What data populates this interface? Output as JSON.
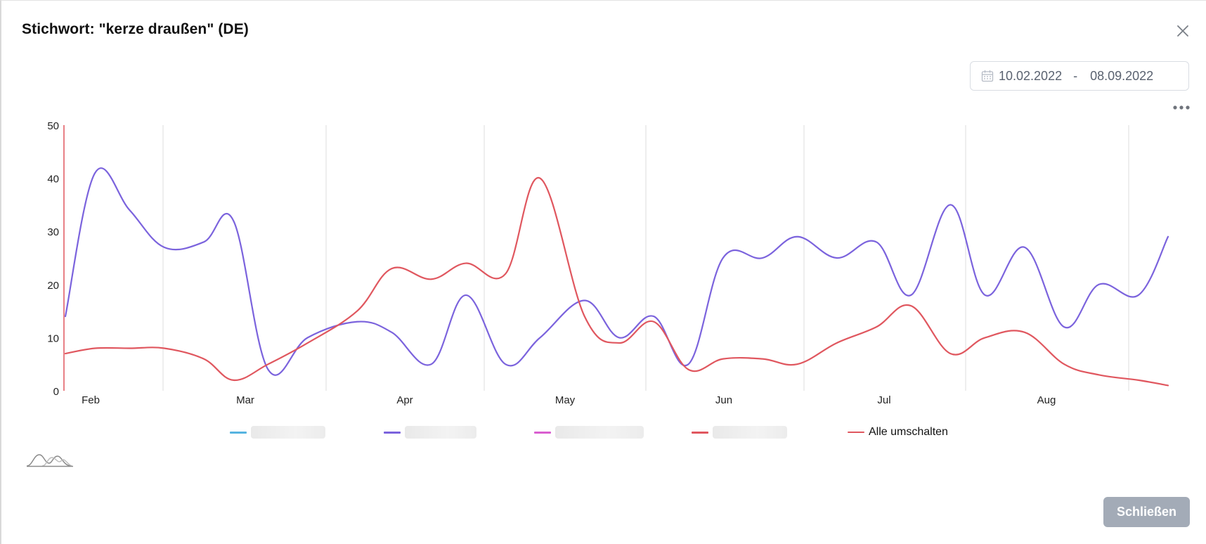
{
  "modal": {
    "title": "Stichwort: \"kerze draußen\" (DE)",
    "close_icon": "close-icon"
  },
  "date_range": {
    "icon": "calendar-icon",
    "start": "10.02.2022",
    "separator": "-",
    "end": "08.09.2022"
  },
  "menu": {
    "icon": "more-horizontal-icon"
  },
  "legend": {
    "items": [
      {
        "color": "#56b4e0",
        "label": ""
      },
      {
        "color": "#7b63dd",
        "label": ""
      },
      {
        "color": "#d95fd0",
        "label": ""
      },
      {
        "color": "#e0575f",
        "label": ""
      }
    ],
    "toggle_all": {
      "color": "#e0575f",
      "label": "Alle umschalten"
    }
  },
  "thumbnail_icon": "chart-thumbnail-icon",
  "footer": {
    "close_label": "Schließen"
  },
  "chart_data": {
    "type": "line",
    "title": "",
    "xlabel": "",
    "ylabel": "",
    "ylim": [
      0,
      50
    ],
    "yticks": [
      0,
      10,
      20,
      30,
      40,
      50
    ],
    "x_tick_labels": [
      "Feb",
      "Mar",
      "Apr",
      "May",
      "Jun",
      "Jul",
      "Aug"
    ],
    "grid": "vertical",
    "series": [
      {
        "color": "#7b63dd",
        "points": [
          [
            "2022-02-10",
            14
          ],
          [
            "2022-02-16",
            41
          ],
          [
            "2022-02-23",
            34
          ],
          [
            "2022-03-02",
            27
          ],
          [
            "2022-03-10",
            28
          ],
          [
            "2022-03-16",
            32
          ],
          [
            "2022-03-23",
            4
          ],
          [
            "2022-03-31",
            10
          ],
          [
            "2022-04-10",
            13
          ],
          [
            "2022-04-17",
            11
          ],
          [
            "2022-04-25",
            5
          ],
          [
            "2022-05-02",
            18
          ],
          [
            "2022-05-10",
            5
          ],
          [
            "2022-05-17",
            10
          ],
          [
            "2022-05-26",
            17
          ],
          [
            "2022-06-02",
            10
          ],
          [
            "2022-06-09",
            14
          ],
          [
            "2022-06-16",
            5
          ],
          [
            "2022-06-23",
            25
          ],
          [
            "2022-07-01",
            25
          ],
          [
            "2022-07-08",
            29
          ],
          [
            "2022-07-16",
            25
          ],
          [
            "2022-07-24",
            28
          ],
          [
            "2022-07-31",
            18
          ],
          [
            "2022-08-08",
            35
          ],
          [
            "2022-08-15",
            18
          ],
          [
            "2022-08-23",
            27
          ],
          [
            "2022-08-31",
            12
          ],
          [
            "2022-09-07",
            20
          ],
          [
            "2022-09-15",
            18
          ],
          [
            "2022-09-21",
            29
          ]
        ]
      },
      {
        "color": "#e0575f",
        "points": [
          [
            "2022-02-10",
            7
          ],
          [
            "2022-02-16",
            8
          ],
          [
            "2022-02-23",
            8
          ],
          [
            "2022-03-02",
            8
          ],
          [
            "2022-03-10",
            6
          ],
          [
            "2022-03-16",
            2
          ],
          [
            "2022-03-23",
            5
          ],
          [
            "2022-03-31",
            9
          ],
          [
            "2022-04-10",
            15
          ],
          [
            "2022-04-17",
            23
          ],
          [
            "2022-04-25",
            21
          ],
          [
            "2022-05-02",
            24
          ],
          [
            "2022-05-10",
            22
          ],
          [
            "2022-05-17",
            40
          ],
          [
            "2022-05-26",
            14
          ],
          [
            "2022-06-02",
            9
          ],
          [
            "2022-06-09",
            13
          ],
          [
            "2022-06-16",
            4
          ],
          [
            "2022-06-23",
            6
          ],
          [
            "2022-07-01",
            6
          ],
          [
            "2022-07-08",
            5
          ],
          [
            "2022-07-16",
            9
          ],
          [
            "2022-07-24",
            12
          ],
          [
            "2022-07-31",
            16
          ],
          [
            "2022-08-08",
            7
          ],
          [
            "2022-08-15",
            10
          ],
          [
            "2022-08-23",
            11
          ],
          [
            "2022-08-31",
            5
          ],
          [
            "2022-09-07",
            3
          ],
          [
            "2022-09-15",
            2
          ],
          [
            "2022-09-21",
            1
          ]
        ]
      }
    ]
  }
}
